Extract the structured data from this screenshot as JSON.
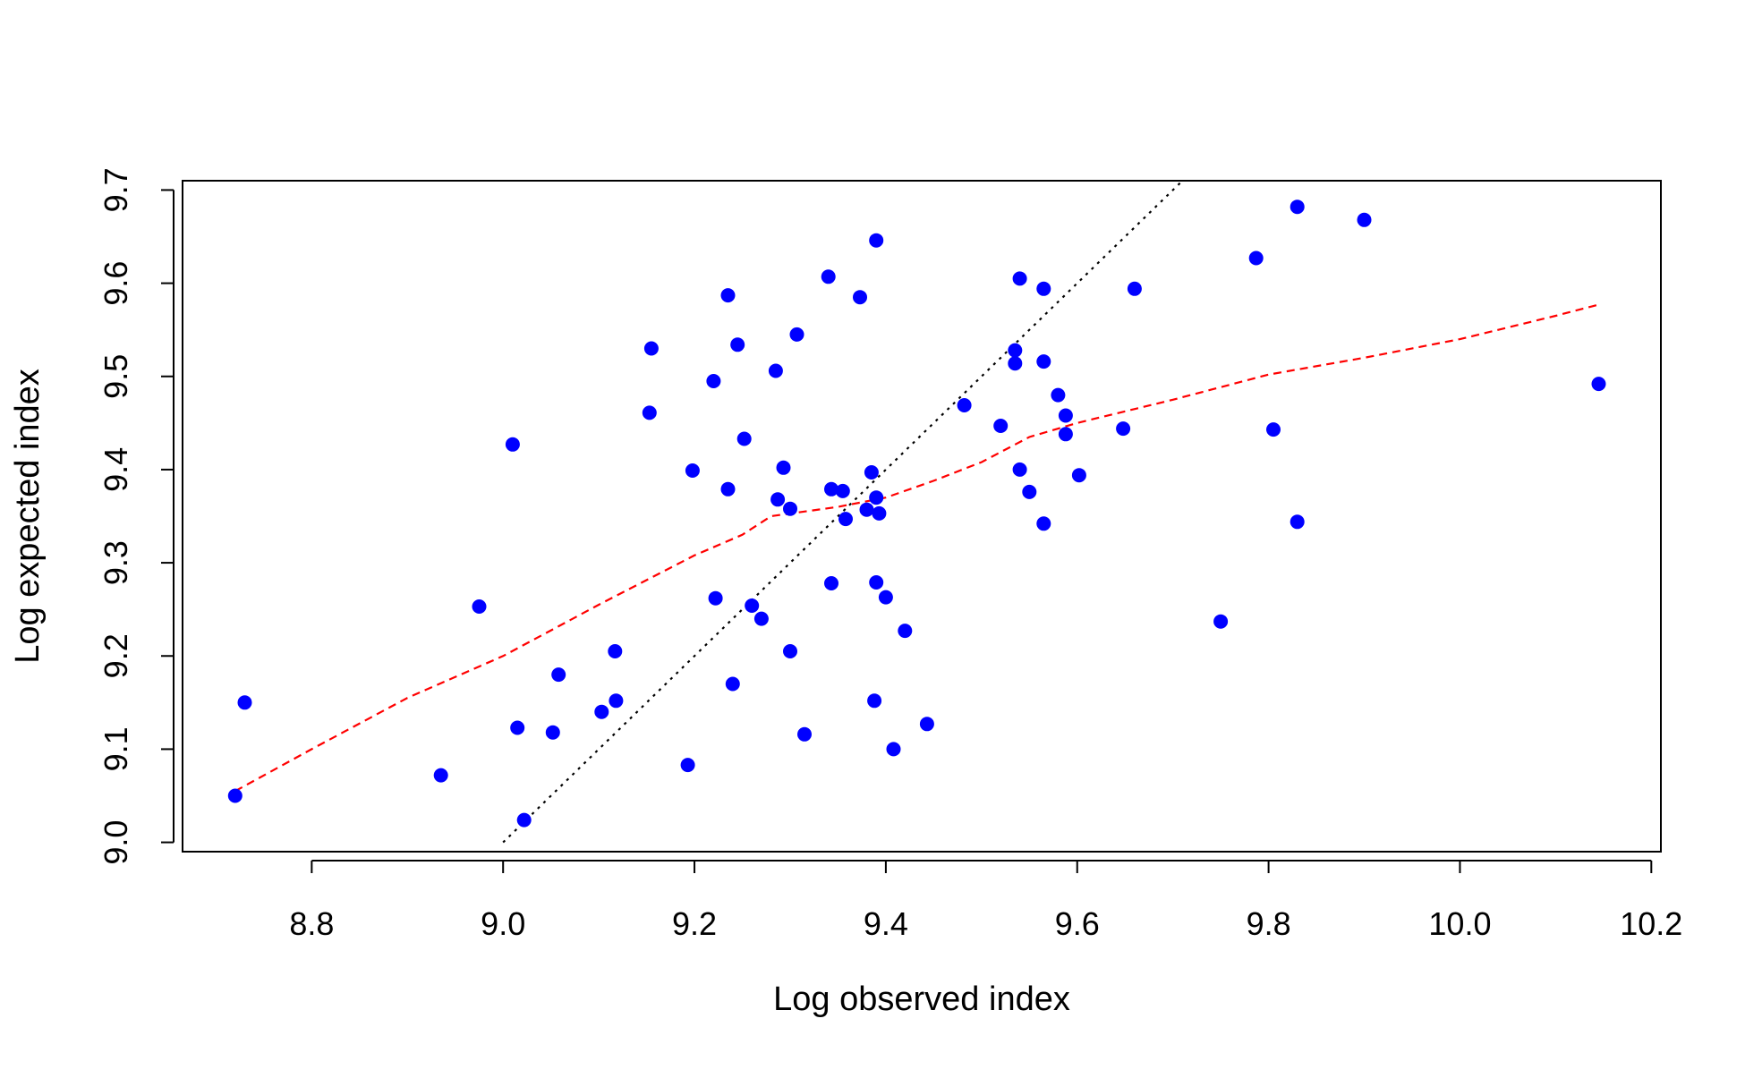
{
  "chart_data": {
    "type": "scatter",
    "title": "",
    "xlabel": "Log observed index",
    "ylabel": "Log expected index",
    "xlim": [
      8.665,
      10.21
    ],
    "ylim": [
      8.99,
      9.71
    ],
    "x_ticks": [
      "8.8",
      "9.0",
      "9.2",
      "9.4",
      "9.6",
      "9.8",
      "10.0",
      "10.2"
    ],
    "y_ticks": [
      "9.0",
      "9.1",
      "9.2",
      "9.3",
      "9.4",
      "9.5",
      "9.6",
      "9.7"
    ],
    "grid": false,
    "point_color": "#0000ff",
    "series": [
      {
        "type": "scatter",
        "points": [
          [
            8.72,
            9.05
          ],
          [
            8.73,
            9.15
          ],
          [
            8.935,
            9.072
          ],
          [
            8.975,
            9.253
          ],
          [
            9.01,
            9.427
          ],
          [
            9.015,
            9.123
          ],
          [
            9.022,
            9.024
          ],
          [
            9.052,
            9.118
          ],
          [
            9.058,
            9.18
          ],
          [
            9.103,
            9.14
          ],
          [
            9.117,
            9.205
          ],
          [
            9.118,
            9.152
          ],
          [
            9.153,
            9.461
          ],
          [
            9.155,
            9.53
          ],
          [
            9.193,
            9.083
          ],
          [
            9.198,
            9.399
          ],
          [
            9.22,
            9.495
          ],
          [
            9.222,
            9.262
          ],
          [
            9.235,
            9.587
          ],
          [
            9.235,
            9.379
          ],
          [
            9.24,
            9.17
          ],
          [
            9.245,
            9.534
          ],
          [
            9.252,
            9.433
          ],
          [
            9.26,
            9.254
          ],
          [
            9.27,
            9.24
          ],
          [
            9.285,
            9.506
          ],
          [
            9.287,
            9.368
          ],
          [
            9.293,
            9.402
          ],
          [
            9.3,
            9.358
          ],
          [
            9.3,
            9.205
          ],
          [
            9.307,
            9.545
          ],
          [
            9.315,
            9.116
          ],
          [
            9.34,
            9.607
          ],
          [
            9.343,
            9.379
          ],
          [
            9.343,
            9.278
          ],
          [
            9.355,
            9.377
          ],
          [
            9.358,
            9.347
          ],
          [
            9.373,
            9.585
          ],
          [
            9.38,
            9.357
          ],
          [
            9.385,
            9.397
          ],
          [
            9.39,
            9.37
          ],
          [
            9.39,
            9.646
          ],
          [
            9.39,
            9.279
          ],
          [
            9.388,
            9.152
          ],
          [
            9.393,
            9.353
          ],
          [
            9.4,
            9.263
          ],
          [
            9.408,
            9.1
          ],
          [
            9.42,
            9.227
          ],
          [
            9.443,
            9.127
          ],
          [
            9.482,
            9.469
          ],
          [
            9.52,
            9.447
          ],
          [
            9.535,
            9.528
          ],
          [
            9.535,
            9.514
          ],
          [
            9.54,
            9.605
          ],
          [
            9.54,
            9.4
          ],
          [
            9.55,
            9.376
          ],
          [
            9.565,
            9.594
          ],
          [
            9.565,
            9.516
          ],
          [
            9.565,
            9.342
          ],
          [
            9.58,
            9.48
          ],
          [
            9.588,
            9.458
          ],
          [
            9.588,
            9.438
          ],
          [
            9.602,
            9.394
          ],
          [
            9.648,
            9.444
          ],
          [
            9.66,
            9.594
          ],
          [
            9.75,
            9.237
          ],
          [
            9.787,
            9.627
          ],
          [
            9.805,
            9.443
          ],
          [
            9.83,
            9.682
          ],
          [
            9.83,
            9.344
          ],
          [
            9.9,
            9.668
          ],
          [
            10.145,
            9.492
          ]
        ]
      },
      {
        "type": "line",
        "style": "dotted",
        "color": "#000000",
        "points": [
          [
            9.0,
            9.0
          ],
          [
            9.71,
            9.71
          ]
        ]
      },
      {
        "type": "line",
        "style": "dashed",
        "color": "#ff0000",
        "points": [
          [
            8.72,
            9.055
          ],
          [
            8.8,
            9.1
          ],
          [
            8.9,
            9.155
          ],
          [
            9.0,
            9.2
          ],
          [
            9.1,
            9.255
          ],
          [
            9.2,
            9.308
          ],
          [
            9.25,
            9.33
          ],
          [
            9.28,
            9.35
          ],
          [
            9.35,
            9.36
          ],
          [
            9.4,
            9.37
          ],
          [
            9.45,
            9.388
          ],
          [
            9.5,
            9.408
          ],
          [
            9.55,
            9.435
          ],
          [
            9.6,
            9.45
          ],
          [
            9.7,
            9.475
          ],
          [
            9.8,
            9.502
          ],
          [
            9.9,
            9.52
          ],
          [
            10.0,
            9.54
          ],
          [
            10.1,
            9.565
          ],
          [
            10.145,
            9.577
          ]
        ]
      }
    ]
  }
}
